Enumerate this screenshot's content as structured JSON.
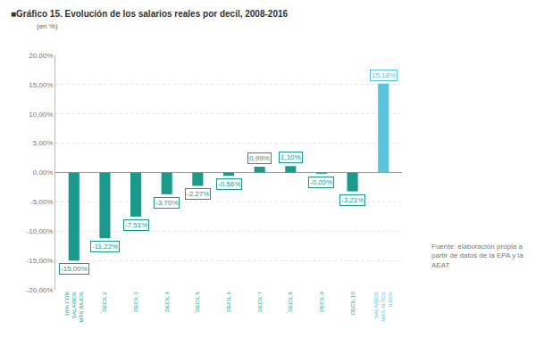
{
  "chart_data": {
    "type": "bar",
    "title": "■Gráfico 15. Evolución de los salarios reales por decil, 2008-2016",
    "y_label": "(en %)",
    "source": "Fuente: elaboración propia a partir de datos de la EPA y la AEAT",
    "categories": [
      "10% CON SALARIOS MÁS BAJOS",
      "DECIL 2",
      "DECIL 3",
      "DECIL 4",
      "DECIL 5",
      "DECIL 6",
      "DECIL 7",
      "DECIL 8",
      "DECIL 9",
      "DECIL 10",
      "SALARIOS MÁS ALTOS 0,05%"
    ],
    "values": [
      -15.0,
      -11.22,
      -7.51,
      -3.7,
      -2.27,
      -0.56,
      0.99,
      1.1,
      -0.2,
      -3.21,
      15.18
    ],
    "value_labels": [
      "-15,00%",
      "-11,22%",
      "-7,51%",
      "-3,70%",
      "-2,27%",
      "-0,56%",
      "0,99%",
      "1,10%",
      "-0,20%",
      "-3,21%",
      "15,18%"
    ],
    "colors": [
      "#1b9a8c",
      "#1b9a8c",
      "#1b9a8c",
      "#1b9a8c",
      "#1b9a8c",
      "#1b9a8c",
      "#1b9a8c",
      "#1b9a8c",
      "#1b9a8c",
      "#1b9a8c",
      "#5bc4dd"
    ],
    "data_labels": true,
    "grid": true,
    "ylim": [
      -20,
      20
    ],
    "yticks": [
      {
        "value": -20,
        "label": "-20,00%"
      },
      {
        "value": -15,
        "label": "-15,00%"
      },
      {
        "value": -10,
        "label": "-10,00%"
      },
      {
        "value": -5,
        "label": "-5,00%"
      },
      {
        "value": 0,
        "label": "0,00%"
      },
      {
        "value": 5,
        "label": "5,00%"
      },
      {
        "value": 10,
        "label": "10,00%"
      },
      {
        "value": 15,
        "label": "15,00%"
      },
      {
        "value": 20,
        "label": "20,00%"
      }
    ]
  }
}
